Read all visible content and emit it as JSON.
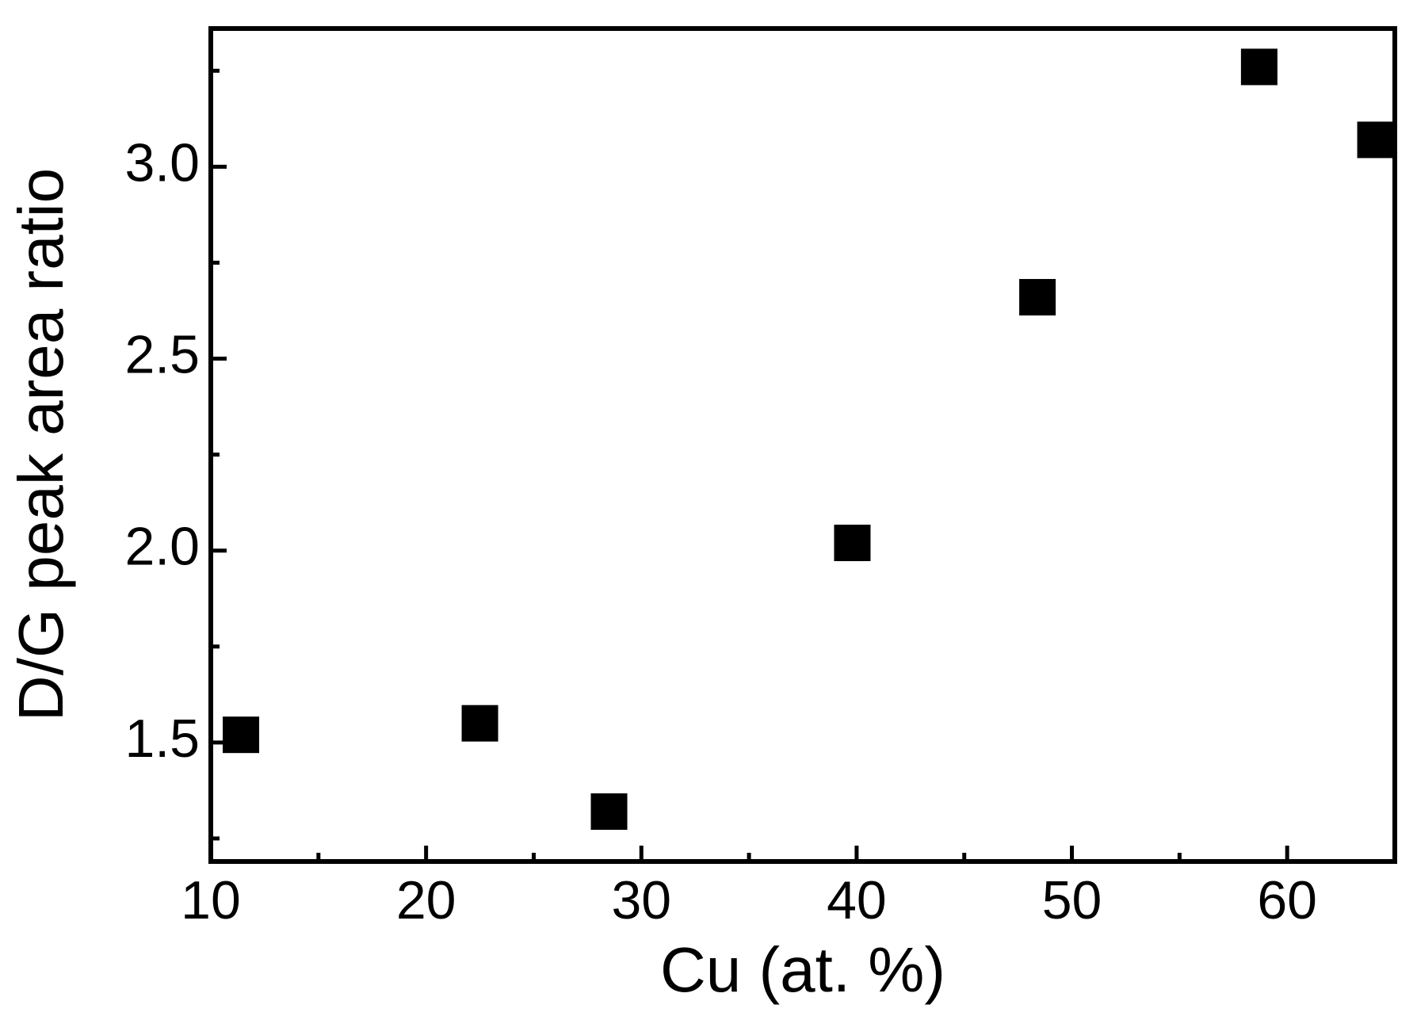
{
  "chart_data": {
    "type": "scatter",
    "x_label": "Cu (at. %)",
    "y_label": "D/G peak area ratio",
    "x": [
      11.4,
      22.5,
      28.5,
      39.8,
      48.4,
      58.7,
      64.1
    ],
    "values": [
      1.52,
      1.55,
      1.32,
      2.02,
      2.66,
      3.26,
      3.07
    ],
    "color": "#000000",
    "marker": "square",
    "xlim": [
      10,
      65
    ],
    "xticks": [
      10,
      20,
      30,
      40,
      50,
      60
    ],
    "xminorticks": [
      15,
      25,
      35,
      45,
      55
    ],
    "ylim": [
      1.19,
      3.36
    ],
    "yticks": [
      1.5,
      {
        "value": 2,
        "label": "2.0"
      },
      2.5,
      {
        "value": 3,
        "label": "3.0"
      }
    ],
    "yminorticks": [
      1.25,
      1.75,
      2.25,
      2.75,
      3.25
    ],
    "grid": false
  }
}
